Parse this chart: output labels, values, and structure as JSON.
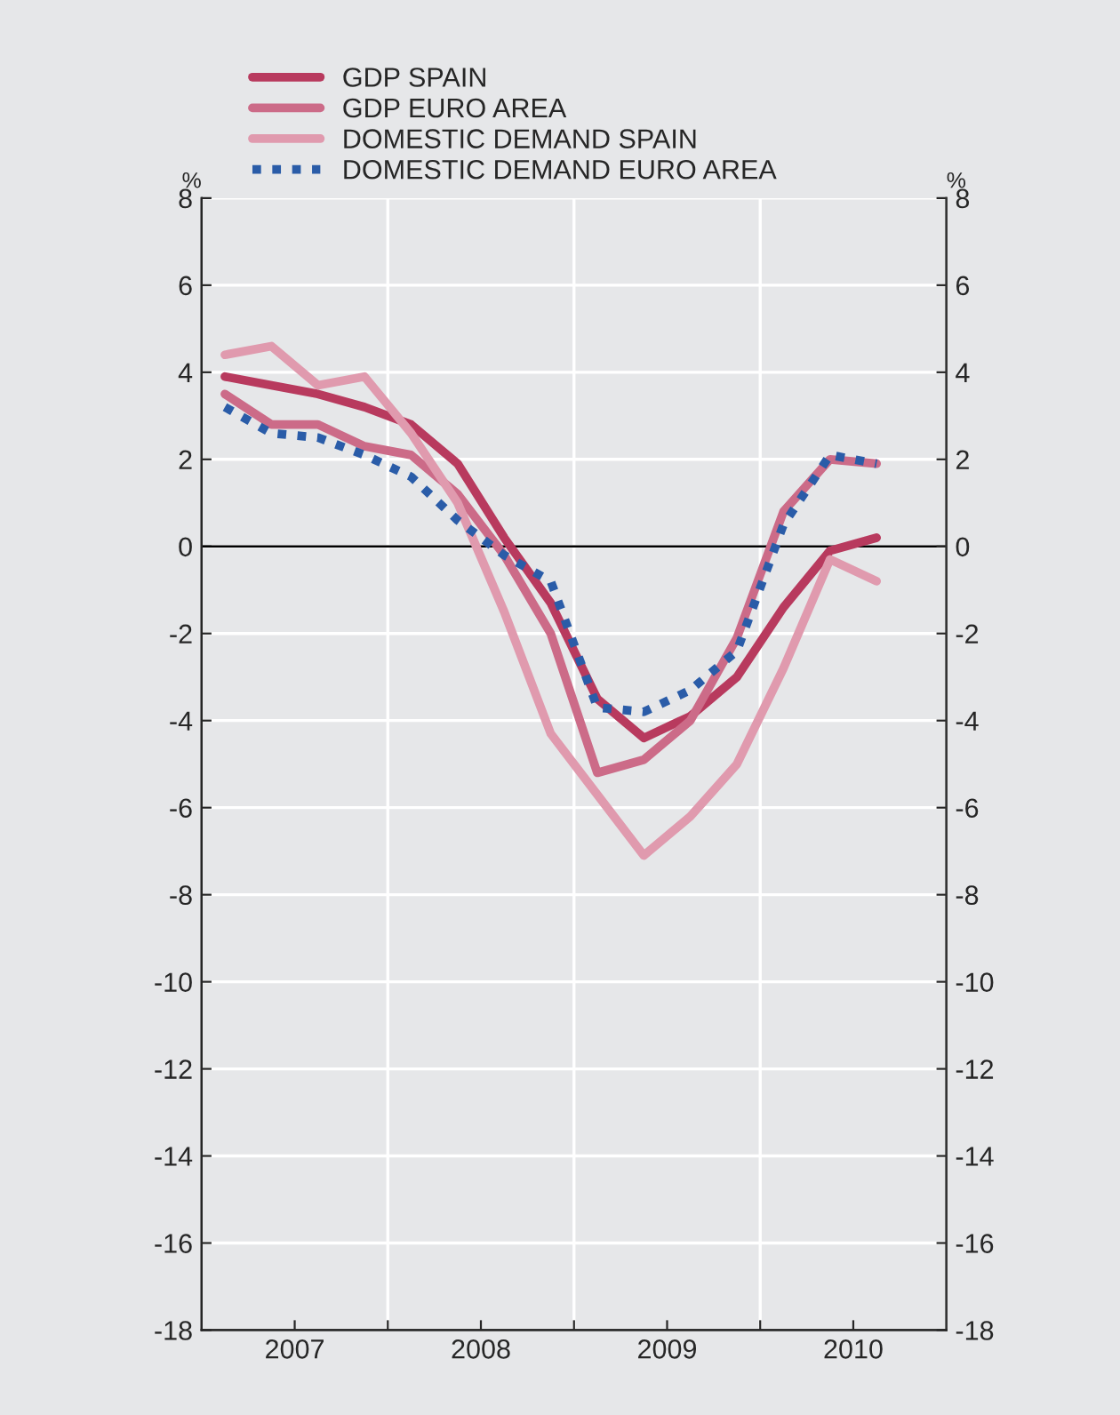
{
  "chart_data": {
    "type": "line",
    "x": [
      2007.125,
      2007.375,
      2007.625,
      2007.875,
      2008.125,
      2008.375,
      2008.625,
      2008.875,
      2009.125,
      2009.375,
      2009.625,
      2009.875,
      2010.125,
      2010.375,
      2010.625
    ],
    "series": [
      {
        "name": "GDP SPAIN",
        "color": "#b83a5e",
        "line_style": "solid",
        "values": [
          3.9,
          3.7,
          3.5,
          3.2,
          2.8,
          1.9,
          0.2,
          -1.3,
          -3.5,
          -4.4,
          -3.9,
          -3.0,
          -1.4,
          -0.1,
          0.2
        ]
      },
      {
        "name": "GDP EURO AREA",
        "color": "#cc6b88",
        "line_style": "solid",
        "values": [
          3.5,
          2.8,
          2.8,
          2.3,
          2.1,
          1.2,
          -0.2,
          -2.0,
          -5.2,
          -4.9,
          -4.0,
          -2.1,
          0.8,
          2.0,
          1.9
        ]
      },
      {
        "name": "DOMESTIC DEMAND SPAIN",
        "color": "#e09aae",
        "line_style": "solid",
        "values": [
          4.4,
          4.6,
          3.7,
          3.9,
          2.6,
          1.0,
          -1.5,
          -4.3,
          -5.7,
          -7.1,
          -6.2,
          -5.0,
          -2.8,
          -0.3,
          -0.8
        ]
      },
      {
        "name": "DOMESTIC DEMAND EURO AREA",
        "color": "#2a5ca8",
        "line_style": "dotted",
        "values": [
          3.2,
          2.6,
          2.5,
          2.1,
          1.6,
          0.6,
          -0.2,
          -0.8,
          -3.7,
          -3.8,
          -3.3,
          -2.4,
          0.5,
          2.1,
          1.9
        ]
      }
    ],
    "ylabel": "%",
    "y2label": "%",
    "xlim": [
      2007,
      2011
    ],
    "xticks": [
      {
        "value": 2007.5,
        "label": "2007"
      },
      {
        "value": 2008,
        "label": null
      },
      {
        "value": 2008.5,
        "label": "2008"
      },
      {
        "value": 2009,
        "label": null
      },
      {
        "value": 2009.5,
        "label": "2009"
      },
      {
        "value": 2010,
        "label": null
      },
      {
        "value": 2010.5,
        "label": "2010"
      }
    ],
    "ylim": [
      -18,
      8
    ],
    "yticks": [
      -18,
      -16,
      -14,
      -12,
      -10,
      -8,
      -6,
      -4,
      -2,
      0,
      2,
      4,
      6,
      8
    ],
    "y2lim": [
      -18,
      8
    ],
    "y2ticks": [
      -18,
      -16,
      -14,
      -12,
      -10,
      -8,
      -6,
      -4,
      -2,
      0,
      2,
      4,
      6,
      8
    ],
    "ref_lines": [
      {
        "axis": "y",
        "value": 0,
        "color": "#000000"
      }
    ],
    "grid": true,
    "legend": "top left"
  }
}
